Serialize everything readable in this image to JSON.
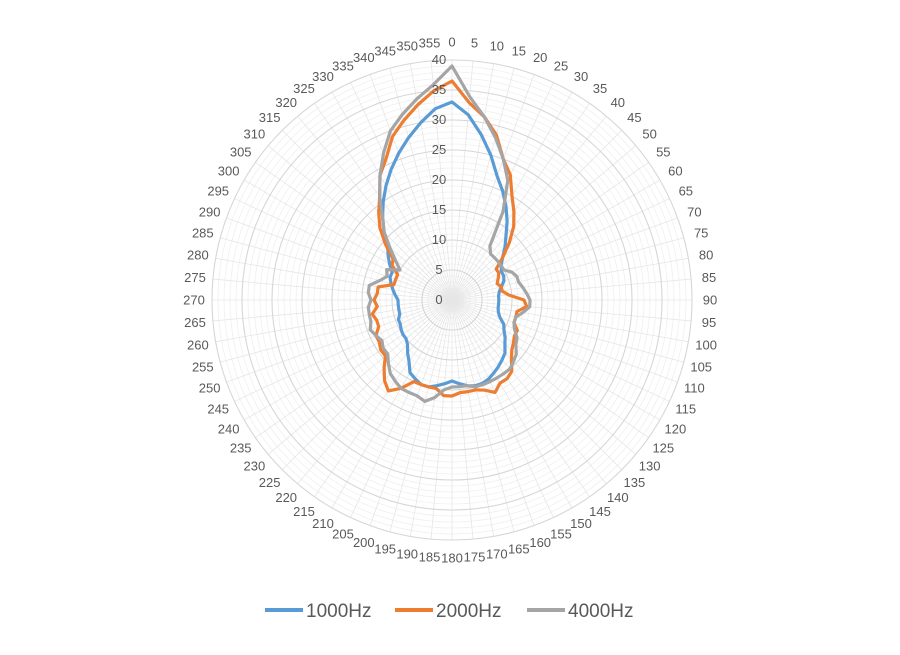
{
  "chart_data": {
    "type": "radar",
    "title": "",
    "angles": [
      0,
      5,
      10,
      15,
      20,
      25,
      30,
      35,
      40,
      45,
      50,
      55,
      60,
      65,
      70,
      75,
      80,
      85,
      90,
      95,
      100,
      105,
      110,
      115,
      120,
      125,
      130,
      135,
      140,
      145,
      150,
      155,
      160,
      165,
      170,
      175,
      180,
      185,
      190,
      195,
      200,
      205,
      210,
      215,
      220,
      225,
      230,
      235,
      240,
      245,
      250,
      255,
      260,
      265,
      270,
      275,
      280,
      285,
      290,
      295,
      300,
      305,
      310,
      315,
      320,
      325,
      330,
      335,
      340,
      345,
      350,
      355
    ],
    "radial_ticks": [
      0,
      5,
      10,
      15,
      20,
      25,
      30,
      35,
      40
    ],
    "rlim": [
      0,
      40
    ],
    "grid": true,
    "legend_position": "bottom",
    "series": [
      {
        "name": "1000Hz",
        "color": "#5b9bd5",
        "values": [
          33,
          31,
          28,
          25,
          22,
          20,
          18,
          16,
          14,
          12.5,
          11,
          10,
          9.5,
          9.5,
          9.2,
          8.5,
          8,
          7.8,
          7.8,
          7.8,
          7.8,
          8,
          8.5,
          9.5,
          10,
          10.8,
          11.5,
          12.5,
          13,
          13.5,
          14,
          14.5,
          14.8,
          14.8,
          14.5,
          14,
          13.5,
          14,
          14.5,
          15,
          15,
          14.5,
          14,
          12.5,
          11.5,
          10.5,
          10,
          10,
          9.8,
          9.5,
          9.5,
          9,
          9,
          9,
          9,
          9.5,
          10,
          10.5,
          11,
          11,
          12,
          13,
          14,
          16,
          18,
          20,
          22,
          24,
          26,
          28,
          30,
          32
        ]
      },
      {
        "name": "2000Hz",
        "color": "#ed7d31",
        "values": [
          36.5,
          33,
          31,
          28.5,
          25,
          23,
          20,
          18,
          16,
          13.5,
          11,
          9,
          9,
          8.5,
          8,
          8.5,
          8.5,
          9.5,
          12,
          12.5,
          11,
          11,
          11,
          12,
          12,
          12.5,
          13,
          14,
          15.5,
          16,
          16,
          17,
          16,
          15.5,
          15.5,
          15.5,
          16,
          16,
          15,
          15,
          15,
          15,
          17,
          18.5,
          17.5,
          16,
          14.5,
          14.5,
          14,
          14,
          13,
          13,
          13.5,
          12.5,
          13,
          12.5,
          12.5,
          10,
          10,
          10,
          11.5,
          12,
          14.5,
          17,
          19,
          21,
          24,
          26,
          29,
          31,
          33,
          35
        ]
      },
      {
        "name": "4000Hz",
        "color": "#a5a5a5",
        "values": [
          39,
          34,
          31,
          28,
          25,
          22,
          17,
          11,
          10,
          10,
          10,
          10,
          10,
          11,
          11.5,
          11.5,
          12,
          12.5,
          13,
          13,
          12,
          11,
          11,
          11.5,
          12.5,
          13,
          14,
          14.5,
          15,
          15,
          15,
          15,
          15,
          15,
          14.5,
          14.5,
          14.5,
          15,
          16.5,
          17.5,
          17,
          17,
          17,
          16.5,
          16,
          15,
          14,
          14,
          13.5,
          14,
          14.5,
          14,
          14,
          14,
          13.5,
          14,
          14,
          12.5,
          11.5,
          12,
          10,
          11.5,
          13.5,
          16,
          18,
          21,
          24,
          27,
          30,
          32,
          34,
          36
        ]
      }
    ]
  }
}
